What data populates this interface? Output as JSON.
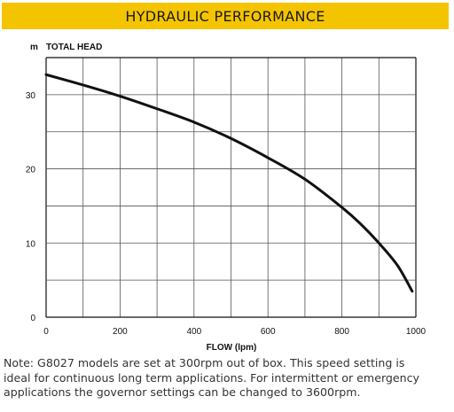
{
  "header": {
    "title": "HYDRAULIC PERFORMANCE"
  },
  "colors": {
    "banner": "#f5c400",
    "curve": "#111111",
    "grid": "#555555"
  },
  "chart_data": {
    "type": "line",
    "title": "",
    "xlabel": "FLOW (lpm)",
    "ylabel": "TOTAL HEAD",
    "yunit": "m",
    "xlim": [
      0,
      1000
    ],
    "ylim": [
      0,
      35
    ],
    "x_gridlines": [
      0,
      100,
      200,
      300,
      400,
      500,
      600,
      700,
      800,
      900,
      1000
    ],
    "y_gridlines": [
      0,
      5,
      10,
      15,
      20,
      25,
      30,
      35
    ],
    "x_ticks": [
      0,
      200,
      400,
      600,
      800,
      1000
    ],
    "y_ticks": [
      0,
      10,
      20,
      30
    ],
    "grid": true,
    "series": [
      {
        "x": [
          0,
          100,
          200,
          300,
          400,
          500,
          600,
          700,
          800,
          850,
          900,
          950,
          990
        ],
        "y": [
          32.7,
          31.3,
          29.8,
          28.1,
          26.3,
          24.1,
          21.5,
          18.6,
          14.8,
          12.6,
          10.0,
          7.0,
          3.5
        ]
      }
    ]
  },
  "note": {
    "lines": [
      "Note: G8027 models are set at 300rpm out of box. This speed setting is",
      "ideal for continuous long term applications. For intermittent or emergency",
      "applications the governor settings can be changed to 3600rpm."
    ]
  }
}
